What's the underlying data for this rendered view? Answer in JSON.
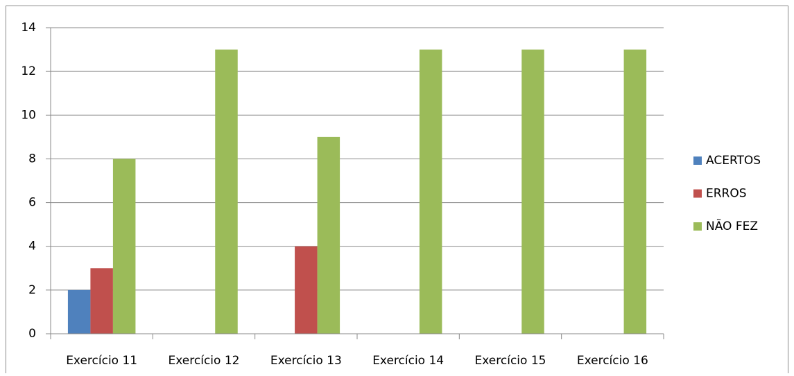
{
  "chart_data": {
    "type": "bar",
    "categories": [
      "Exercício 11",
      "Exercício 12",
      "Exercício 13",
      "Exercício 14",
      "Exercício 15",
      "Exercício 16"
    ],
    "series": [
      {
        "name": "ACERTOS",
        "color": "#4f81bd",
        "values": [
          2,
          0,
          0,
          0,
          0,
          0
        ]
      },
      {
        "name": "ERROS",
        "color": "#c0504d",
        "values": [
          3,
          0,
          4,
          0,
          0,
          0
        ]
      },
      {
        "name": "NÃO FEZ",
        "color": "#9bbb59",
        "values": [
          8,
          13,
          9,
          13,
          13,
          13
        ]
      }
    ],
    "ylim": [
      0,
      14
    ],
    "yticks": [
      0,
      2,
      4,
      6,
      8,
      10,
      12,
      14
    ],
    "grid": true,
    "legend": "right"
  }
}
